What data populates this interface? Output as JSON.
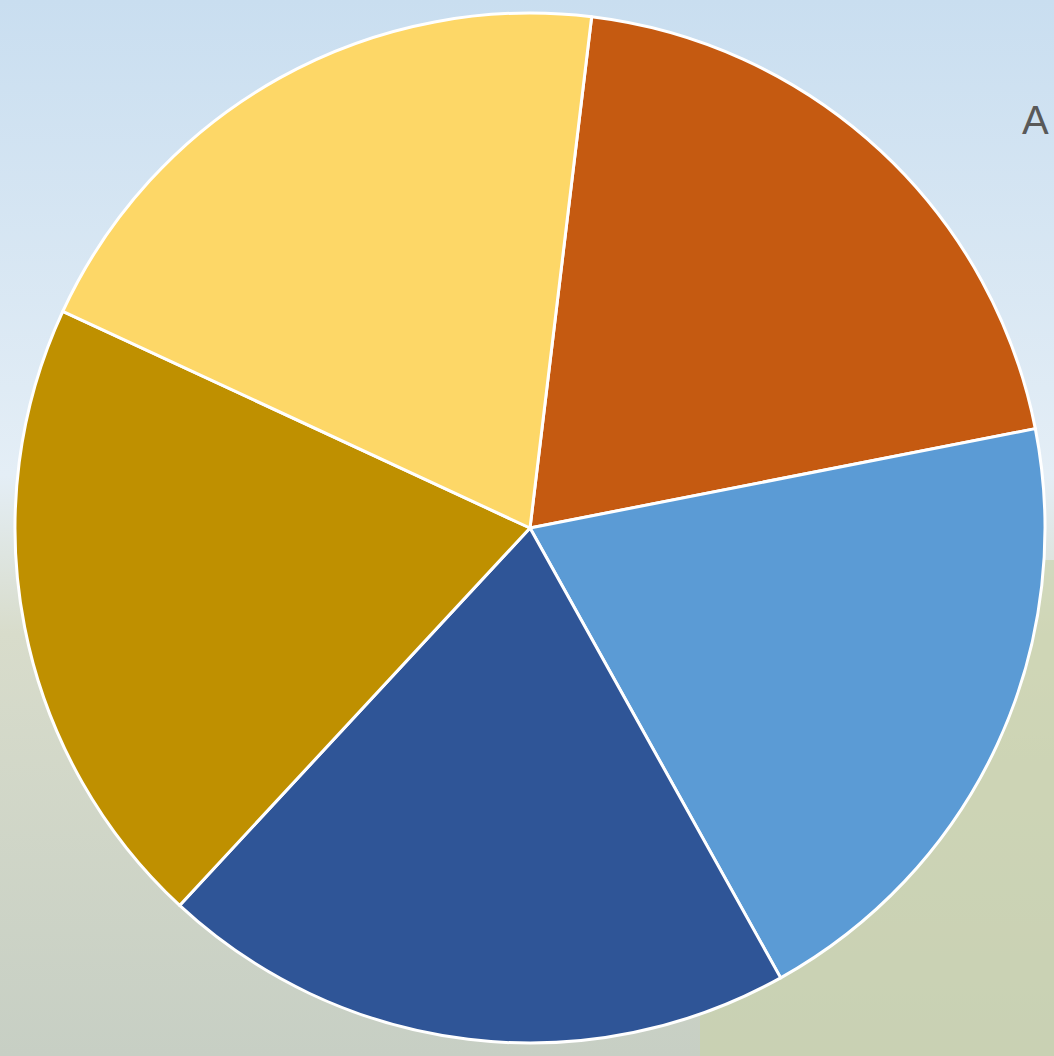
{
  "chart_data": {
    "type": "pie",
    "annotations": [
      "A"
    ],
    "categories": [
      null,
      null,
      null,
      null,
      null
    ],
    "values": [
      20,
      20,
      20,
      20,
      20
    ],
    "colors": [
      "#c55a11",
      "#5b9bd5",
      "#2f5597",
      "#bf9000",
      "#fdd767"
    ],
    "data_labels": false
  }
}
